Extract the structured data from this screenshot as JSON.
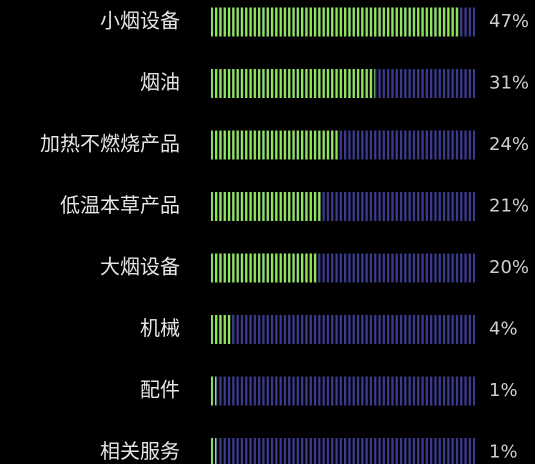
{
  "chart_data": {
    "type": "bar",
    "categories": [
      "小烟设备",
      "烟油",
      "加热不燃烧产品",
      "低温本草产品",
      "大烟设备",
      "机械",
      "配件",
      "相关服务"
    ],
    "values": [
      47,
      31,
      24,
      21,
      20,
      4,
      1,
      1
    ],
    "value_labels": [
      "47%",
      "31%",
      "24%",
      "21%",
      "20%",
      "4%",
      "1%",
      "1%"
    ],
    "color": "#8fe65c",
    "track_color": "#3b3a8e",
    "xlim": [
      0,
      50
    ]
  }
}
